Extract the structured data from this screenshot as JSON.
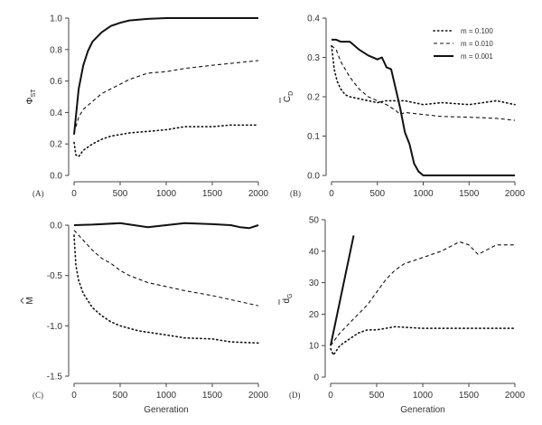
{
  "chart_data": [
    {
      "type": "line",
      "panel_label": "(A)",
      "xlabel": "",
      "ylabel": {
        "main": "Φ",
        "sub": "ST",
        "accent": ""
      },
      "xlim": [
        0,
        2000
      ],
      "ylim": [
        0,
        1.0
      ],
      "xticks": [
        "0",
        "500",
        "1000",
        "1500",
        "2000"
      ],
      "yticks": [
        "0.0",
        "0.2",
        "0.4",
        "0.6",
        "0.8",
        "1.0"
      ],
      "grid": false,
      "series": [
        {
          "name": "m = 0.100",
          "style": "dotted",
          "x": [
            0,
            20,
            50,
            100,
            200,
            300,
            400,
            500,
            600,
            800,
            1000,
            1200,
            1500,
            1700,
            2000
          ],
          "y": [
            0.21,
            0.13,
            0.12,
            0.16,
            0.2,
            0.23,
            0.25,
            0.26,
            0.27,
            0.28,
            0.29,
            0.31,
            0.31,
            0.32,
            0.32
          ]
        },
        {
          "name": "m = 0.010",
          "style": "dashed",
          "x": [
            0,
            50,
            100,
            200,
            300,
            400,
            500,
            600,
            700,
            800,
            1000,
            1200,
            1500,
            2000
          ],
          "y": [
            0.27,
            0.37,
            0.42,
            0.47,
            0.52,
            0.55,
            0.58,
            0.61,
            0.63,
            0.65,
            0.66,
            0.68,
            0.7,
            0.73
          ]
        },
        {
          "name": "m = 0.001",
          "style": "solid",
          "x": [
            0,
            50,
            100,
            150,
            200,
            300,
            400,
            500,
            600,
            800,
            1000,
            1500,
            2000
          ],
          "y": [
            0.26,
            0.55,
            0.7,
            0.79,
            0.85,
            0.91,
            0.95,
            0.97,
            0.985,
            0.995,
            1.0,
            1.0,
            1.0
          ]
        }
      ]
    },
    {
      "type": "line",
      "panel_label": "(B)",
      "xlabel": "",
      "ylabel": {
        "main": "C",
        "sub": "D",
        "accent": "bar"
      },
      "xlim": [
        0,
        2000
      ],
      "ylim": [
        0,
        0.4
      ],
      "xticks": [
        "0",
        "500",
        "1000",
        "1500",
        "2000"
      ],
      "yticks": [
        "0.0",
        "0.1",
        "0.2",
        "0.3",
        "0.4"
      ],
      "grid": false,
      "legend": {
        "position": "top-right",
        "entries": [
          "m = 0.100",
          "m = 0.010",
          "m = 0.001"
        ]
      },
      "series": [
        {
          "name": "m = 0.100",
          "style": "dotted",
          "x": [
            0,
            30,
            60,
            100,
            150,
            200,
            300,
            400,
            500,
            600,
            800,
            1000,
            1200,
            1500,
            1800,
            2000
          ],
          "y": [
            0.33,
            0.27,
            0.24,
            0.22,
            0.205,
            0.2,
            0.195,
            0.19,
            0.185,
            0.19,
            0.19,
            0.18,
            0.185,
            0.18,
            0.19,
            0.18
          ]
        },
        {
          "name": "m = 0.010",
          "style": "dashed",
          "x": [
            0,
            50,
            100,
            200,
            300,
            400,
            500,
            600,
            700,
            750,
            800,
            1000,
            1200,
            1500,
            1800,
            2000
          ],
          "y": [
            0.33,
            0.32,
            0.29,
            0.25,
            0.22,
            0.2,
            0.19,
            0.18,
            0.165,
            0.155,
            0.16,
            0.155,
            0.15,
            0.148,
            0.145,
            0.14
          ]
        },
        {
          "name": "m = 0.001",
          "style": "solid",
          "x": [
            0,
            50,
            100,
            200,
            300,
            400,
            500,
            550,
            600,
            650,
            700,
            750,
            800,
            850,
            900,
            950,
            1000,
            2000
          ],
          "y": [
            0.345,
            0.345,
            0.34,
            0.34,
            0.32,
            0.305,
            0.295,
            0.3,
            0.275,
            0.27,
            0.22,
            0.17,
            0.11,
            0.08,
            0.03,
            0.01,
            0,
            0
          ]
        }
      ]
    },
    {
      "type": "line",
      "panel_label": "(C)",
      "xlabel": "Generation",
      "ylabel": {
        "main": "M",
        "sub": "",
        "accent": "hat"
      },
      "xlim": [
        0,
        2000
      ],
      "ylim": [
        -1.5,
        0.0
      ],
      "xticks": [
        "0",
        "500",
        "1000",
        "1500",
        "2000"
      ],
      "yticks": [
        "-1.5",
        "-1.0",
        "-0.5",
        "0.0"
      ],
      "grid": false,
      "series": [
        {
          "name": "m = 0.100",
          "style": "dotted",
          "x": [
            0,
            20,
            50,
            100,
            200,
            300,
            400,
            500,
            700,
            1000,
            1200,
            1500,
            1700,
            2000
          ],
          "y": [
            -0.1,
            -0.4,
            -0.55,
            -0.68,
            -0.82,
            -0.9,
            -0.96,
            -1.0,
            -1.05,
            -1.09,
            -1.12,
            -1.13,
            -1.16,
            -1.17
          ]
        },
        {
          "name": "m = 0.010",
          "style": "dashed",
          "x": [
            0,
            100,
            200,
            300,
            400,
            500,
            600,
            800,
            1000,
            1200,
            1500,
            1800,
            2000
          ],
          "y": [
            -0.05,
            -0.15,
            -0.25,
            -0.33,
            -0.38,
            -0.45,
            -0.5,
            -0.57,
            -0.61,
            -0.65,
            -0.7,
            -0.76,
            -0.8
          ]
        },
        {
          "name": "m = 0.001",
          "style": "solid",
          "x": [
            0,
            200,
            500,
            800,
            1000,
            1200,
            1500,
            1700,
            1800,
            1900,
            2000
          ],
          "y": [
            0,
            0.005,
            0.02,
            -0.02,
            0,
            0.02,
            0.01,
            0,
            -0.02,
            -0.03,
            0
          ]
        }
      ]
    },
    {
      "type": "line",
      "panel_label": "(D)",
      "xlabel": "Generation",
      "ylabel": {
        "main": "d",
        "sub": "G",
        "accent": "bar"
      },
      "xlim": [
        0,
        2000
      ],
      "ylim": [
        0,
        50
      ],
      "xticks": [
        "0",
        "500",
        "1000",
        "1500",
        "2000"
      ],
      "yticks": [
        "0",
        "10",
        "20",
        "30",
        "40",
        "50"
      ],
      "grid": false,
      "series": [
        {
          "name": "m = 0.100",
          "style": "dotted",
          "x": [
            0,
            30,
            100,
            200,
            300,
            400,
            500,
            700,
            1000,
            1500,
            2000
          ],
          "y": [
            9,
            7,
            10,
            12,
            14,
            15,
            15,
            16,
            15.5,
            15.5,
            15.5
          ]
        },
        {
          "name": "m = 0.010",
          "style": "dashed",
          "x": [
            0,
            100,
            200,
            300,
            400,
            500,
            600,
            700,
            800,
            1000,
            1200,
            1400,
            1500,
            1600,
            1800,
            2000
          ],
          "y": [
            10,
            14,
            17,
            20,
            23,
            27,
            31,
            34,
            36,
            38,
            40,
            43,
            42,
            39,
            42,
            42
          ]
        },
        {
          "name": "m = 0.001",
          "style": "solid",
          "x": [
            0,
            250
          ],
          "y": [
            10,
            45
          ]
        }
      ]
    }
  ]
}
